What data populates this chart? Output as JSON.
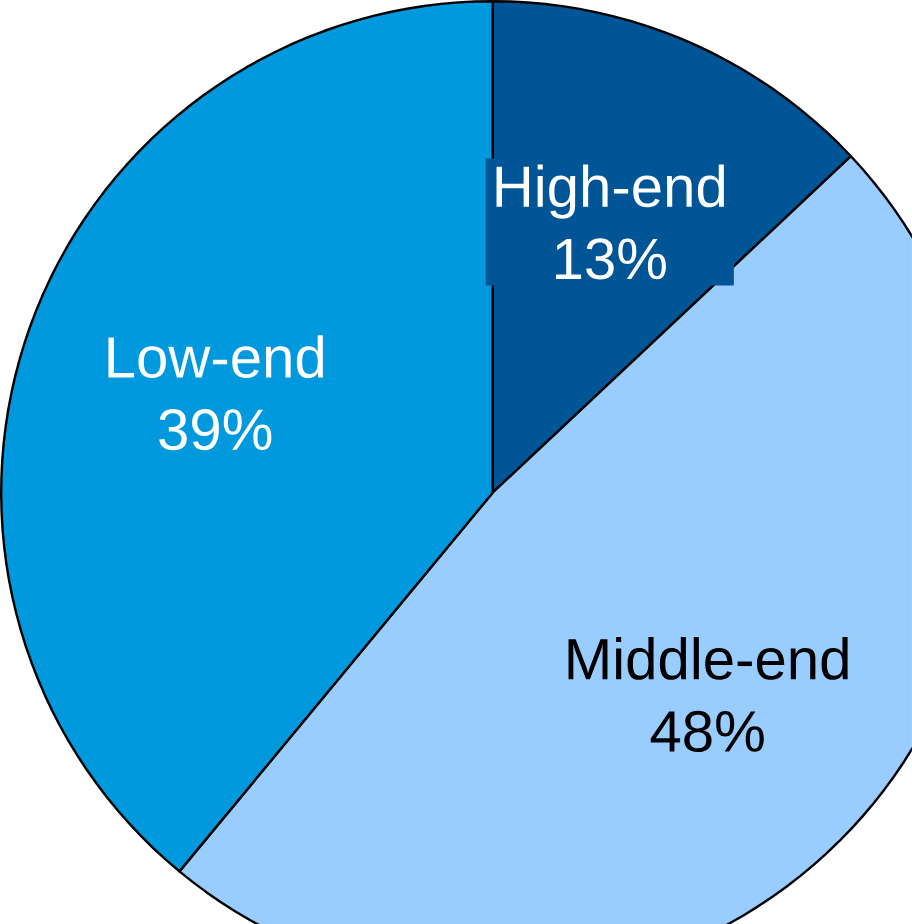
{
  "chart_data": {
    "type": "pie",
    "categories": [
      "High-end",
      "Middle-end",
      "Low-end"
    ],
    "values": [
      13,
      48,
      39
    ],
    "colors": [
      "#005597",
      "#99ccff",
      "#0099dd"
    ],
    "value_labels": [
      "13%",
      "48%",
      "39%"
    ]
  }
}
